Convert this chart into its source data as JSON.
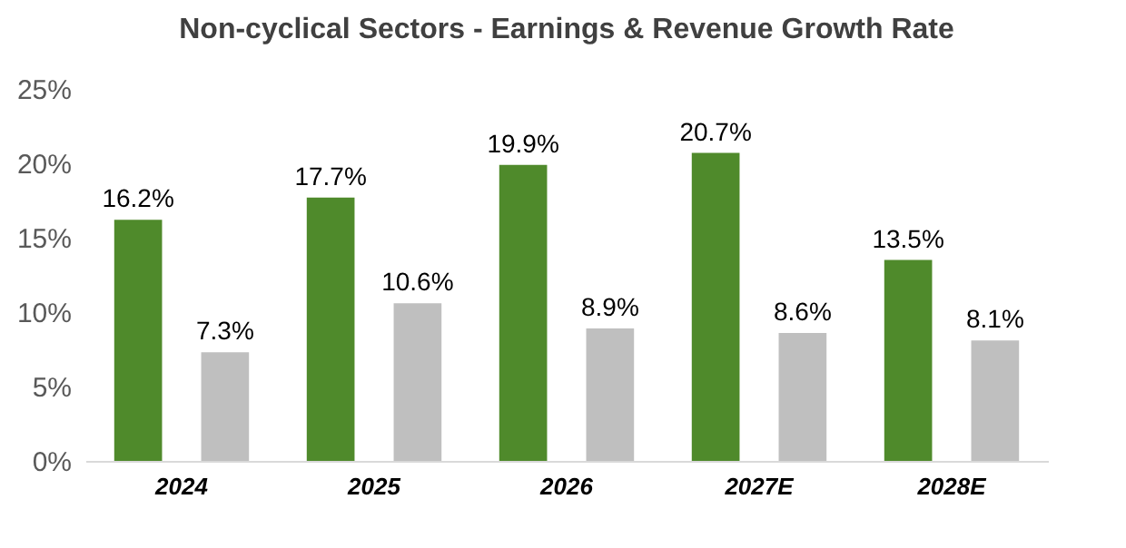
{
  "chart_data": {
    "type": "bar",
    "title": "Non-cyclical Sectors - Earnings & Revenue Growth Rate",
    "categories": [
      "2024",
      "2025",
      "2026",
      "2027E",
      "2028E"
    ],
    "series": [
      {
        "color": "#4f8a2b",
        "values": [
          16.2,
          17.7,
          19.9,
          20.7,
          13.5
        ],
        "value_labels": [
          "16.2%",
          "17.7%",
          "19.9%",
          "20.7%",
          "13.5%"
        ]
      },
      {
        "color": "#bfbfbf",
        "values": [
          7.3,
          10.6,
          8.9,
          8.6,
          8.1
        ],
        "value_labels": [
          "7.3%",
          "10.6%",
          "8.9%",
          "8.6%",
          "8.1%"
        ]
      }
    ],
    "ylim": [
      0,
      25
    ],
    "yticks": [
      {
        "value": 0,
        "label": "0%"
      },
      {
        "value": 5,
        "label": "5%"
      },
      {
        "value": 10,
        "label": "10%"
      },
      {
        "value": 15,
        "label": "15%"
      },
      {
        "value": 20,
        "label": "20%"
      },
      {
        "value": 25,
        "label": "25%"
      }
    ],
    "grid": false,
    "legend": false
  }
}
